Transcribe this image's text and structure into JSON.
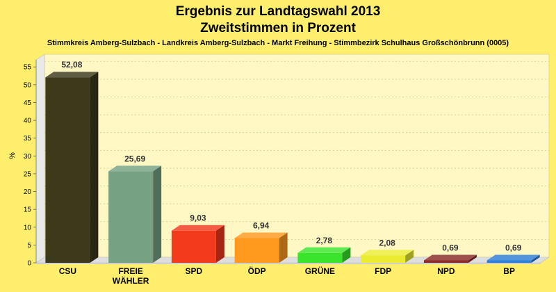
{
  "chart_data": {
    "type": "bar",
    "title": "Ergebnis zur Landtagswahl 2013",
    "title2": "Zweitstimmen in Prozent",
    "subtitle": "Stimmkreis Amberg-Sulzbach - Landkreis Amberg-Sulzbach - Markt Freihung - Stimmbezirk Schulhaus Großschönbrunn (0005)",
    "ylabel": "%",
    "ylim": [
      0,
      57
    ],
    "yticks": [
      0,
      5,
      10,
      15,
      20,
      25,
      30,
      35,
      40,
      45,
      50,
      55
    ],
    "grid": true,
    "categories": [
      {
        "name": "CSU",
        "lines": [
          "CSU"
        ]
      },
      {
        "name": "FREIE WÄHLER",
        "lines": [
          "FREIE",
          "WÄHLER"
        ]
      },
      {
        "name": "SPD",
        "lines": [
          "SPD"
        ]
      },
      {
        "name": "ÖDP",
        "lines": [
          "ÖDP"
        ]
      },
      {
        "name": "GRÜNE",
        "lines": [
          "GRÜNE"
        ]
      },
      {
        "name": "FDP",
        "lines": [
          "FDP"
        ]
      },
      {
        "name": "NPD",
        "lines": [
          "NPD"
        ]
      },
      {
        "name": "BP",
        "lines": [
          "BP"
        ]
      }
    ],
    "values": [
      52.08,
      25.69,
      9.03,
      6.94,
      2.78,
      2.08,
      0.69,
      0.69
    ],
    "value_labels": [
      "52,08",
      "25,69",
      "9,03",
      "6,94",
      "2,78",
      "2,08",
      "0,69",
      "0,69"
    ],
    "colors": [
      "#3d3a1c",
      "#76a283",
      "#f23a1c",
      "#ff9a1f",
      "#3be42c",
      "#ebeb32",
      "#8a2b27",
      "#2e7fd6"
    ]
  }
}
